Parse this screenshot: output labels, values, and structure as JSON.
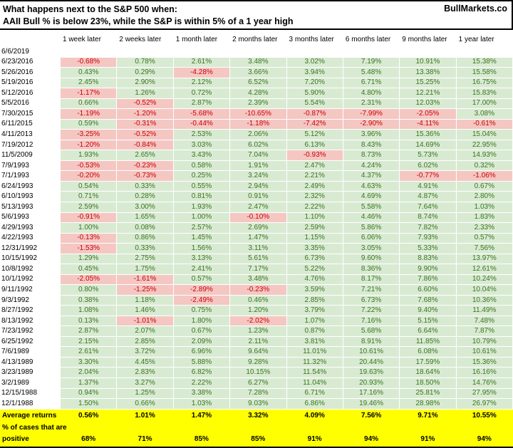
{
  "header": {
    "title_line1": "What happens next to the S&P 500 when:",
    "title_line2": "AAII Bull % is below 23%, while the S&P is within 5% of a 1 year high",
    "brand": "BullMarkets.co"
  },
  "colors": {
    "positive_bg": "#d9ead3",
    "positive_text": "#38761d",
    "negative_bg": "#f4c7c3",
    "negative_text": "#cc0000",
    "footer_bg": "#ffff00"
  },
  "chart_data": {
    "type": "table",
    "columns": [
      "1 week later",
      "2 weeks later",
      "1 month later",
      "2 months later",
      "3 months later",
      "6 months later",
      "9 months later",
      "1 year later"
    ],
    "rows": [
      {
        "date": "6/6/2019",
        "values": [
          "",
          "",
          "",
          "",
          "",
          "",
          "",
          ""
        ]
      },
      {
        "date": "6/23/2016",
        "values": [
          "-0.68%",
          "0.78%",
          "2.61%",
          "3.48%",
          "3.02%",
          "7.19%",
          "10.91%",
          "15.38%"
        ]
      },
      {
        "date": "5/26/2016",
        "values": [
          "0.43%",
          "0.29%",
          "-4.28%",
          "3.66%",
          "3.94%",
          "5.48%",
          "13.38%",
          "15.58%"
        ]
      },
      {
        "date": "5/19/2016",
        "values": [
          "2.45%",
          "2.90%",
          "2.12%",
          "6.52%",
          "7.20%",
          "6.71%",
          "15.25%",
          "16.75%"
        ]
      },
      {
        "date": "5/12/2016",
        "values": [
          "-1.17%",
          "1.26%",
          "0.72%",
          "4.28%",
          "5.90%",
          "4.80%",
          "12.21%",
          "15.83%"
        ]
      },
      {
        "date": "5/5/2016",
        "values": [
          "0.66%",
          "-0.52%",
          "2.87%",
          "2.39%",
          "5.54%",
          "2.31%",
          "12.03%",
          "17.00%"
        ]
      },
      {
        "date": "7/30/2015",
        "values": [
          "-1.19%",
          "-1.20%",
          "-5.68%",
          "-10.65%",
          "-0.87%",
          "-7.99%",
          "-2.05%",
          "3.08%"
        ]
      },
      {
        "date": "6/11/2015",
        "values": [
          "0.59%",
          "-0.31%",
          "-0.44%",
          "-1.18%",
          "-7.42%",
          "-2.90%",
          "-4.11%",
          "-0.61%"
        ]
      },
      {
        "date": "4/11/2013",
        "values": [
          "-3.25%",
          "-0.52%",
          "2.53%",
          "2.06%",
          "5.12%",
          "3.96%",
          "15.36%",
          "15.04%"
        ]
      },
      {
        "date": "7/19/2012",
        "values": [
          "-1.20%",
          "-0.84%",
          "3.03%",
          "6.02%",
          "6.13%",
          "8.43%",
          "14.69%",
          "22.95%"
        ]
      },
      {
        "date": "11/5/2009",
        "values": [
          "1.93%",
          "2.65%",
          "3.43%",
          "7.04%",
          "-0.93%",
          "8.73%",
          "5.73%",
          "14.93%"
        ]
      },
      {
        "date": "7/9/1993",
        "values": [
          "-0.53%",
          "-0.23%",
          "0.58%",
          "1.91%",
          "2.47%",
          "4.24%",
          "6.02%",
          "0.32%"
        ]
      },
      {
        "date": "7/1/1993",
        "values": [
          "-0.20%",
          "-0.73%",
          "0.25%",
          "3.24%",
          "2.21%",
          "4.37%",
          "-0.77%",
          "-1.06%"
        ]
      },
      {
        "date": "6/24/1993",
        "values": [
          "0.54%",
          "0.33%",
          "0.55%",
          "2.94%",
          "2.49%",
          "4.63%",
          "4.91%",
          "0.67%"
        ]
      },
      {
        "date": "6/10/1993",
        "values": [
          "0.71%",
          "0.28%",
          "0.81%",
          "0.91%",
          "2.32%",
          "4.69%",
          "4.87%",
          "2.80%"
        ]
      },
      {
        "date": "5/13/1993",
        "values": [
          "2.59%",
          "3.00%",
          "1.93%",
          "2.47%",
          "2.22%",
          "5.58%",
          "7.64%",
          "1.03%"
        ]
      },
      {
        "date": "5/6/1993",
        "values": [
          "-0.91%",
          "1.65%",
          "1.00%",
          "-0.10%",
          "1.10%",
          "4.46%",
          "8.74%",
          "1.83%"
        ]
      },
      {
        "date": "4/29/1993",
        "values": [
          "1.00%",
          "0.08%",
          "2.57%",
          "2.69%",
          "2.59%",
          "5.86%",
          "7.82%",
          "2.33%"
        ]
      },
      {
        "date": "4/22/1993",
        "values": [
          "-0.13%",
          "0.86%",
          "1.45%",
          "1.47%",
          "1.15%",
          "6.06%",
          "7.93%",
          "0.57%"
        ]
      },
      {
        "date": "12/31/1992",
        "values": [
          "-1.53%",
          "0.33%",
          "1.56%",
          "3.11%",
          "3.35%",
          "3.05%",
          "5.33%",
          "7.56%"
        ]
      },
      {
        "date": "10/15/1992",
        "values": [
          "1.29%",
          "2.75%",
          "3.13%",
          "5.61%",
          "6.73%",
          "9.60%",
          "8.83%",
          "13.97%"
        ]
      },
      {
        "date": "10/8/1992",
        "values": [
          "0.45%",
          "1.75%",
          "2.41%",
          "7.17%",
          "5.22%",
          "8.36%",
          "9.90%",
          "12.61%"
        ]
      },
      {
        "date": "10/1/1992",
        "values": [
          "-2.05%",
          "-1.61%",
          "0.57%",
          "3.48%",
          "4.76%",
          "8.17%",
          "7.86%",
          "10.24%"
        ]
      },
      {
        "date": "9/11/1992",
        "values": [
          "0.80%",
          "-1.25%",
          "-2.89%",
          "-0.23%",
          "3.59%",
          "7.21%",
          "6.60%",
          "10.04%"
        ]
      },
      {
        "date": "9/3/1992",
        "values": [
          "0.38%",
          "1.18%",
          "-2.49%",
          "0.46%",
          "2.85%",
          "6.73%",
          "7.68%",
          "10.36%"
        ]
      },
      {
        "date": "8/27/1992",
        "values": [
          "1.08%",
          "1.46%",
          "0.75%",
          "1.20%",
          "3.79%",
          "7.22%",
          "9.40%",
          "11.49%"
        ]
      },
      {
        "date": "8/13/1992",
        "values": [
          "0.13%",
          "-1.01%",
          "1.80%",
          "-2.02%",
          "1.07%",
          "7.16%",
          "5.15%",
          "7.48%"
        ]
      },
      {
        "date": "7/23/1992",
        "values": [
          "2.87%",
          "2.07%",
          "0.67%",
          "1.23%",
          "0.87%",
          "5.68%",
          "6.64%",
          "7.87%"
        ]
      },
      {
        "date": "6/25/1992",
        "values": [
          "2.15%",
          "2.85%",
          "2.09%",
          "2.11%",
          "3.81%",
          "8.91%",
          "11.85%",
          "10.79%"
        ]
      },
      {
        "date": "7/6/1989",
        "values": [
          "2.61%",
          "3.72%",
          "6.96%",
          "9.64%",
          "11.01%",
          "10.61%",
          "6.08%",
          "10.61%"
        ]
      },
      {
        "date": "4/13/1989",
        "values": [
          "3.30%",
          "4.45%",
          "5.88%",
          "9.28%",
          "11.32%",
          "20.44%",
          "17.59%",
          "15.36%"
        ]
      },
      {
        "date": "3/23/1989",
        "values": [
          "2.04%",
          "2.83%",
          "6.82%",
          "10.15%",
          "11.54%",
          "19.63%",
          "18.64%",
          "16.16%"
        ]
      },
      {
        "date": "3/2/1989",
        "values": [
          "1.37%",
          "3.27%",
          "2.22%",
          "6.27%",
          "11.04%",
          "20.93%",
          "18.50%",
          "14.76%"
        ]
      },
      {
        "date": "12/15/1988",
        "values": [
          "0.94%",
          "1.25%",
          "3.38%",
          "7.28%",
          "6.71%",
          "17.16%",
          "25.81%",
          "27.95%"
        ]
      },
      {
        "date": "12/1/1988",
        "values": [
          "1.50%",
          "0.66%",
          "1.03%",
          "9.03%",
          "6.86%",
          "19.46%",
          "28.98%",
          "26.97%"
        ]
      }
    ],
    "summary": {
      "avg_label": "Average returns",
      "avg_values": [
        "0.56%",
        "1.01%",
        "1.47%",
        "3.32%",
        "4.09%",
        "7.56%",
        "9.71%",
        "10.55%"
      ],
      "pos_label_line1": "% of cases that are",
      "pos_label_line2": "positive",
      "pos_values": [
        "68%",
        "71%",
        "85%",
        "85%",
        "91%",
        "94%",
        "91%",
        "94%"
      ]
    }
  }
}
